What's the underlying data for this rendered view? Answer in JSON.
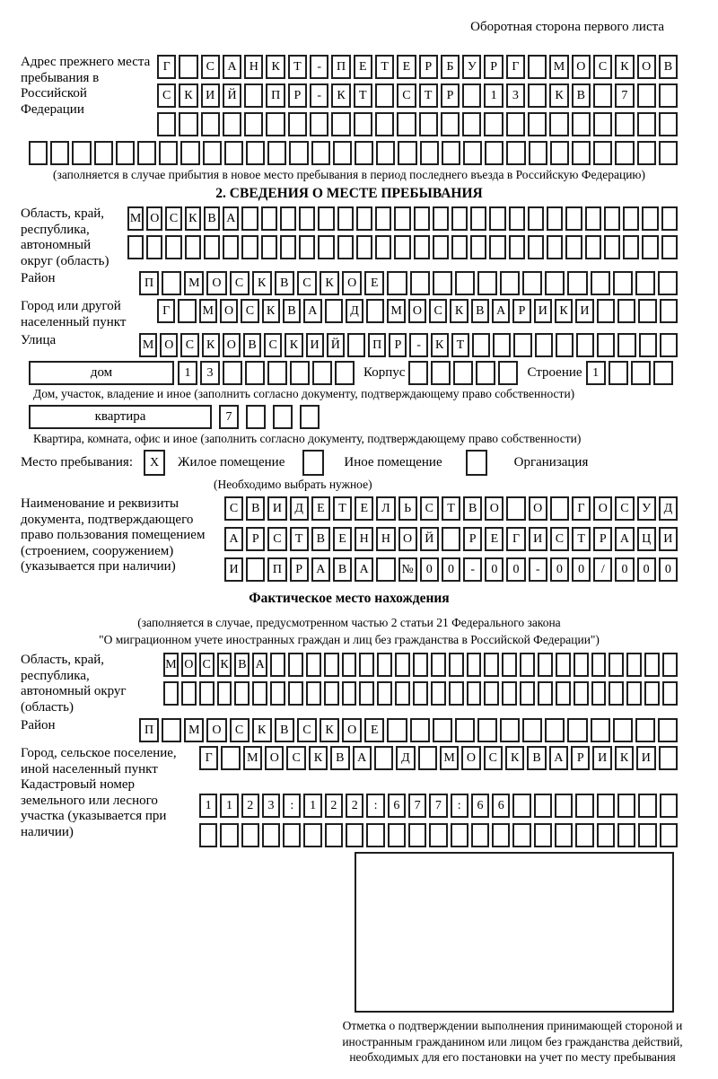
{
  "page_header": "Оборотная сторона первого листа",
  "prev_address": {
    "label": "Адрес прежнего места пребывания в Российской Федерации",
    "row1": [
      "Г",
      "",
      "С",
      "А",
      "Н",
      "К",
      "Т",
      "-",
      "П",
      "Е",
      "Т",
      "Е",
      "Р",
      "Б",
      "У",
      "Р",
      "Г",
      "",
      "М",
      "О",
      "С",
      "К",
      "О",
      "В"
    ],
    "row2": [
      "С",
      "К",
      "И",
      "Й",
      "",
      "П",
      "Р",
      "-",
      "К",
      "Т",
      "",
      "С",
      "Т",
      "Р",
      "",
      "1",
      "3",
      "",
      "К",
      "В",
      "",
      "7",
      "",
      ""
    ],
    "row3": [
      "",
      "",
      "",
      "",
      "",
      "",
      "",
      "",
      "",
      "",
      "",
      "",
      "",
      "",
      "",
      "",
      "",
      "",
      "",
      "",
      "",
      "",
      "",
      ""
    ],
    "row4": [
      "",
      "",
      "",
      "",
      "",
      "",
      "",
      "",
      "",
      "",
      "",
      "",
      "",
      "",
      "",
      "",
      "",
      "",
      "",
      "",
      "",
      "",
      "",
      "",
      "",
      "",
      "",
      "",
      "",
      ""
    ],
    "note": "(заполняется в случае прибытия в новое место пребывания в период последнего въезда в Российскую Федерацию)"
  },
  "section2": {
    "title": "2. СВЕДЕНИЯ О МЕСТЕ ПРЕБЫВАНИЯ",
    "region_label": "Область, край, республика, автономный округ (область)",
    "region_row1": [
      "М",
      "О",
      "С",
      "К",
      "В",
      "А",
      "",
      "",
      "",
      "",
      "",
      "",
      "",
      "",
      "",
      "",
      "",
      "",
      "",
      "",
      "",
      "",
      "",
      "",
      "",
      "",
      "",
      "",
      ""
    ],
    "region_row2": [
      "",
      "",
      "",
      "",
      "",
      "",
      "",
      "",
      "",
      "",
      "",
      "",
      "",
      "",
      "",
      "",
      "",
      "",
      "",
      "",
      "",
      "",
      "",
      "",
      "",
      "",
      "",
      "",
      ""
    ],
    "district_label": "Район",
    "district_row": [
      "П",
      "",
      "М",
      "О",
      "С",
      "К",
      "В",
      "С",
      "К",
      "О",
      "Е",
      "",
      "",
      "",
      "",
      "",
      "",
      "",
      "",
      "",
      "",
      "",
      "",
      ""
    ],
    "city_label": "Город или другой населенный пункт",
    "city_row": [
      "Г",
      "",
      "М",
      "О",
      "С",
      "К",
      "В",
      "А",
      "",
      "Д",
      "",
      "М",
      "О",
      "С",
      "К",
      "В",
      "А",
      "Р",
      "И",
      "К",
      "И",
      "",
      "",
      "",
      ""
    ],
    "street_label": "Улица",
    "street_row": [
      "М",
      "О",
      "С",
      "К",
      "О",
      "В",
      "С",
      "К",
      "И",
      "Й",
      "",
      "П",
      "Р",
      "-",
      "К",
      "Т",
      "",
      "",
      "",
      "",
      "",
      "",
      "",
      "",
      "",
      ""
    ],
    "house_label": "дом",
    "house_row": [
      "1",
      "3",
      "",
      "",
      "",
      "",
      "",
      ""
    ],
    "korpus_label": "Корпус",
    "korpus_row": [
      "",
      "",
      "",
      "",
      ""
    ],
    "stroenie_label": "Строение",
    "stroenie_row": [
      "1",
      "",
      "",
      ""
    ],
    "house_note": "Дом, участок, владение и иное (заполнить согласно документу, подтверждающему право собственности)",
    "apartment_label": "квартира",
    "apartment_row": [
      "7",
      "",
      "",
      ""
    ],
    "apartment_note": "Квартира, комната, офис и иное (заполнить согласно документу, подтверждающему право собственности)",
    "stay_place_label": "Место пребывания:",
    "stay_residential_value": "X",
    "stay_residential_label": "Жилое помещение",
    "stay_other_value": "",
    "stay_other_label": "Иное помещение",
    "stay_org_value": "",
    "stay_org_label": "Организация",
    "stay_note": "(Необходимо выбрать нужное)",
    "document_label": "Наименование и реквизиты документа, подтверждающего право пользования помещением (строением, сооружением) (указывается при наличии)",
    "document_row1": [
      "С",
      "В",
      "И",
      "Д",
      "Е",
      "Т",
      "Е",
      "Л",
      "Ь",
      "С",
      "Т",
      "В",
      "О",
      "",
      "О",
      "",
      "Г",
      "О",
      "С",
      "У",
      "Д"
    ],
    "document_row2": [
      "А",
      "Р",
      "С",
      "Т",
      "В",
      "Е",
      "Н",
      "Н",
      "О",
      "Й",
      "",
      "Р",
      "Е",
      "Г",
      "И",
      "С",
      "Т",
      "Р",
      "А",
      "Ц",
      "И"
    ],
    "document_row3": [
      "И",
      "",
      "П",
      "Р",
      "А",
      "В",
      "А",
      "",
      "№",
      "0",
      "0",
      "-",
      "0",
      "0",
      "-",
      "0",
      "0",
      "/",
      "0",
      "0",
      "0"
    ]
  },
  "actual_location": {
    "title": "Фактическое место нахождения",
    "note_line1": "(заполняется в случае, предусмотренном частью 2 статьи 21 Федерального закона",
    "note_line2": "\"О миграционном учете иностранных граждан и лиц без гражданства в Российской Федерации\")",
    "region_label": "Область, край, республика, автономный округ (область)",
    "region_row1": [
      "М",
      "О",
      "С",
      "К",
      "В",
      "А",
      "",
      "",
      "",
      "",
      "",
      "",
      "",
      "",
      "",
      "",
      "",
      "",
      "",
      "",
      "",
      "",
      "",
      "",
      "",
      "",
      "",
      "",
      ""
    ],
    "region_row2": [
      "",
      "",
      "",
      "",
      "",
      "",
      "",
      "",
      "",
      "",
      "",
      "",
      "",
      "",
      "",
      "",
      "",
      "",
      "",
      "",
      "",
      "",
      "",
      "",
      "",
      "",
      "",
      "",
      ""
    ],
    "district_label": "Район",
    "district_row": [
      "П",
      "",
      "М",
      "О",
      "С",
      "К",
      "В",
      "С",
      "К",
      "О",
      "Е",
      "",
      "",
      "",
      "",
      "",
      "",
      "",
      "",
      "",
      "",
      "",
      "",
      ""
    ],
    "city_label": "Город, сельское поселение, иной населенный пункт",
    "city_row": [
      "Г",
      "",
      "М",
      "О",
      "С",
      "К",
      "В",
      "А",
      "",
      "Д",
      "",
      "М",
      "О",
      "С",
      "К",
      "В",
      "А",
      "Р",
      "И",
      "К",
      "И",
      ""
    ],
    "cadastral_label": "Кадастровый номер земельного или лесного участка (указывается при наличии)",
    "cadastral_row1": [
      "1",
      "1",
      "2",
      "3",
      ":",
      "1",
      "2",
      "2",
      ":",
      "6",
      "7",
      "7",
      ":",
      "6",
      "6",
      "",
      "",
      "",
      "",
      "",
      "",
      "",
      ""
    ],
    "cadastral_row2": [
      "",
      "",
      "",
      "",
      "",
      "",
      "",
      "",
      "",
      "",
      "",
      "",
      "",
      "",
      "",
      "",
      "",
      "",
      "",
      "",
      "",
      "",
      ""
    ],
    "stamp_note": "Отметка о подтверждении выполнения принимающей стороной и иностранным гражданином или лицом без гражданства действий, необходимых для его постановки на учет по месту пребывания"
  }
}
